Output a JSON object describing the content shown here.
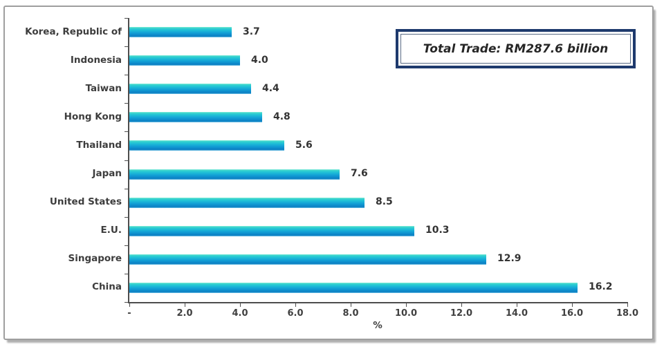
{
  "figure": {
    "background": "#ffffff",
    "frame_border_color": "#9e9e9e",
    "axis_color": "#4d4d4d",
    "text_color": "#3d3d3d"
  },
  "annotation_box": {
    "text": "Total Trade: RM287.6 billion",
    "outer_border_color": "#1e3a6d",
    "inner_border_color": "#5a6b85",
    "text_color": "#262626"
  },
  "chart_data": {
    "type": "bar",
    "orientation": "horizontal",
    "title": "",
    "xlabel": "%",
    "ylabel": "",
    "categories": [
      "Korea, Republic of",
      "Indonesia",
      "Taiwan",
      "Hong Kong",
      "Thailand",
      "Japan",
      "United States",
      "E.U.",
      "Singapore",
      "China"
    ],
    "values": [
      3.7,
      4.0,
      4.4,
      4.8,
      5.6,
      7.6,
      8.5,
      10.3,
      12.9,
      16.2
    ],
    "value_labels": [
      "3.7",
      "4.0",
      "4.4",
      "4.8",
      "5.6",
      "7.6",
      "8.5",
      "10.3",
      "12.9",
      "16.2"
    ],
    "xlim": [
      0,
      18
    ],
    "x_ticks": [
      0,
      2,
      4,
      6,
      8,
      10,
      12,
      14,
      16,
      18
    ],
    "x_tick_labels": [
      "-",
      "2.0",
      "4.0",
      "6.0",
      "8.0",
      "10.0",
      "12.0",
      "14.0",
      "16.0",
      "18.0"
    ],
    "grid": false,
    "legend": false,
    "bar_gradient": [
      "#86ecd9",
      "#21c2d6",
      "#13a2d6",
      "#0a7ec2",
      "#79c8e8"
    ],
    "annotation": "Total Trade: RM287.6 billion"
  }
}
